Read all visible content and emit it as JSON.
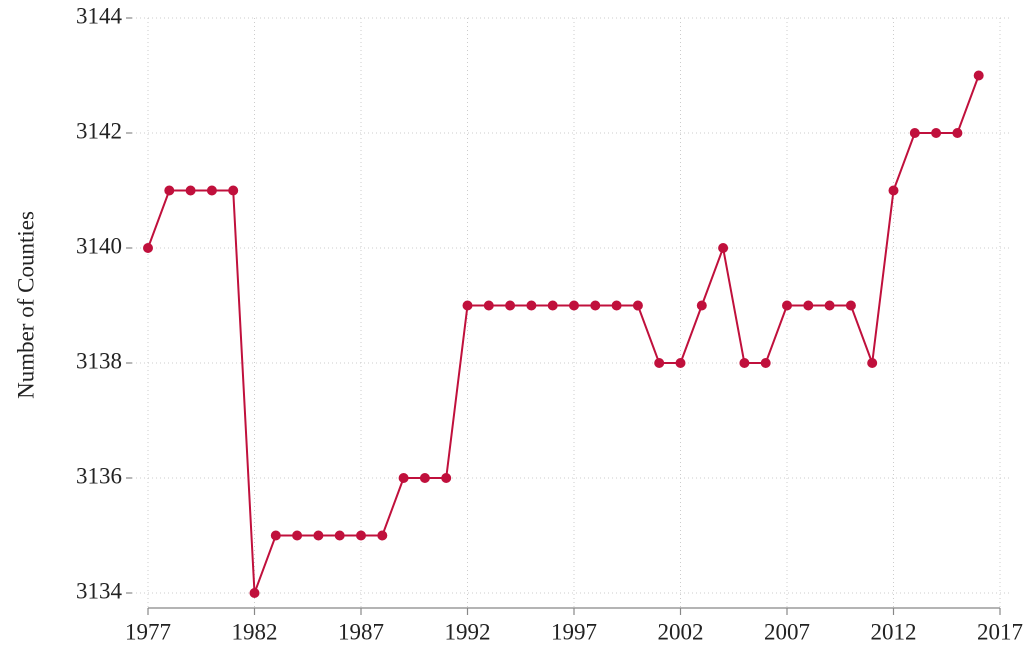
{
  "chart_data": {
    "type": "line",
    "y_label": "Number of Counties",
    "x": [
      1977,
      1978,
      1979,
      1980,
      1981,
      1982,
      1983,
      1984,
      1985,
      1986,
      1987,
      1988,
      1989,
      1990,
      1991,
      1992,
      1993,
      1994,
      1995,
      1996,
      1997,
      1998,
      1999,
      2000,
      2001,
      2002,
      2003,
      2004,
      2005,
      2006,
      2007,
      2008,
      2009,
      2010,
      2011,
      2012,
      2013,
      2014,
      2015,
      2016
    ],
    "series": [
      {
        "color": "#c0103c",
        "values": [
          3140,
          3141,
          3141,
          3141,
          3141,
          3134,
          3135,
          3135,
          3135,
          3135,
          3135,
          3135,
          3136,
          3136,
          3136,
          3139,
          3139,
          3139,
          3139,
          3139,
          3139,
          3139,
          3139,
          3139,
          3138,
          3138,
          3139,
          3140,
          3138,
          3138,
          3139,
          3139,
          3139,
          3139,
          3138,
          3141,
          3142,
          3142,
          3142,
          3143
        ]
      }
    ],
    "xlim": [
      1977,
      2017
    ],
    "xticks": [
      1977,
      1982,
      1987,
      1992,
      1997,
      2002,
      2007,
      2012,
      2017
    ],
    "ylim": [
      3134,
      3144
    ],
    "yticks": [
      3134,
      3136,
      3138,
      3140,
      3142,
      3144
    ],
    "grid": true
  }
}
